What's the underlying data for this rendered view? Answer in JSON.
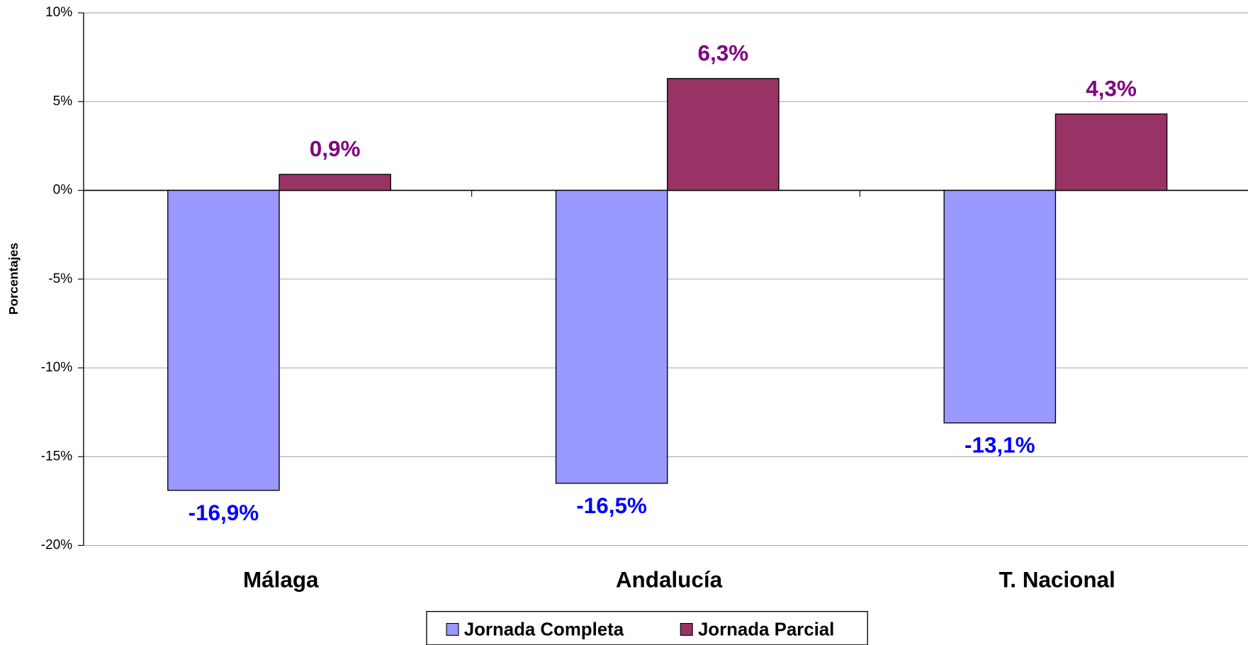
{
  "chart_data": {
    "type": "bar",
    "y_label": "Porcentajes",
    "categories": [
      "Málaga",
      "Andalucía",
      "T. Nacional"
    ],
    "series": [
      {
        "name": "Jornada Completa",
        "color": "#9999ff",
        "label_color": "#0000ff",
        "values": [
          -16.9,
          -16.5,
          -13.1
        ],
        "value_labels": [
          "-16,9%",
          "-16,5%",
          "-13,1%"
        ]
      },
      {
        "name": "Jornada Parcial",
        "color": "#993366",
        "label_color": "#800080",
        "values": [
          0.9,
          6.3,
          4.3
        ],
        "value_labels": [
          "0,9%",
          "6,3%",
          "4,3%"
        ]
      }
    ],
    "ylim": [
      -20,
      10
    ],
    "yticks": [
      {
        "value": 10,
        "label": "10%"
      },
      {
        "value": 5,
        "label": "5%"
      },
      {
        "value": 0,
        "label": "0%"
      },
      {
        "value": -5,
        "label": "-5%"
      },
      {
        "value": -10,
        "label": "-10%"
      },
      {
        "value": -15,
        "label": "-15%"
      },
      {
        "value": -20,
        "label": "-20%"
      }
    ],
    "grid": true,
    "legend": "bottom"
  }
}
